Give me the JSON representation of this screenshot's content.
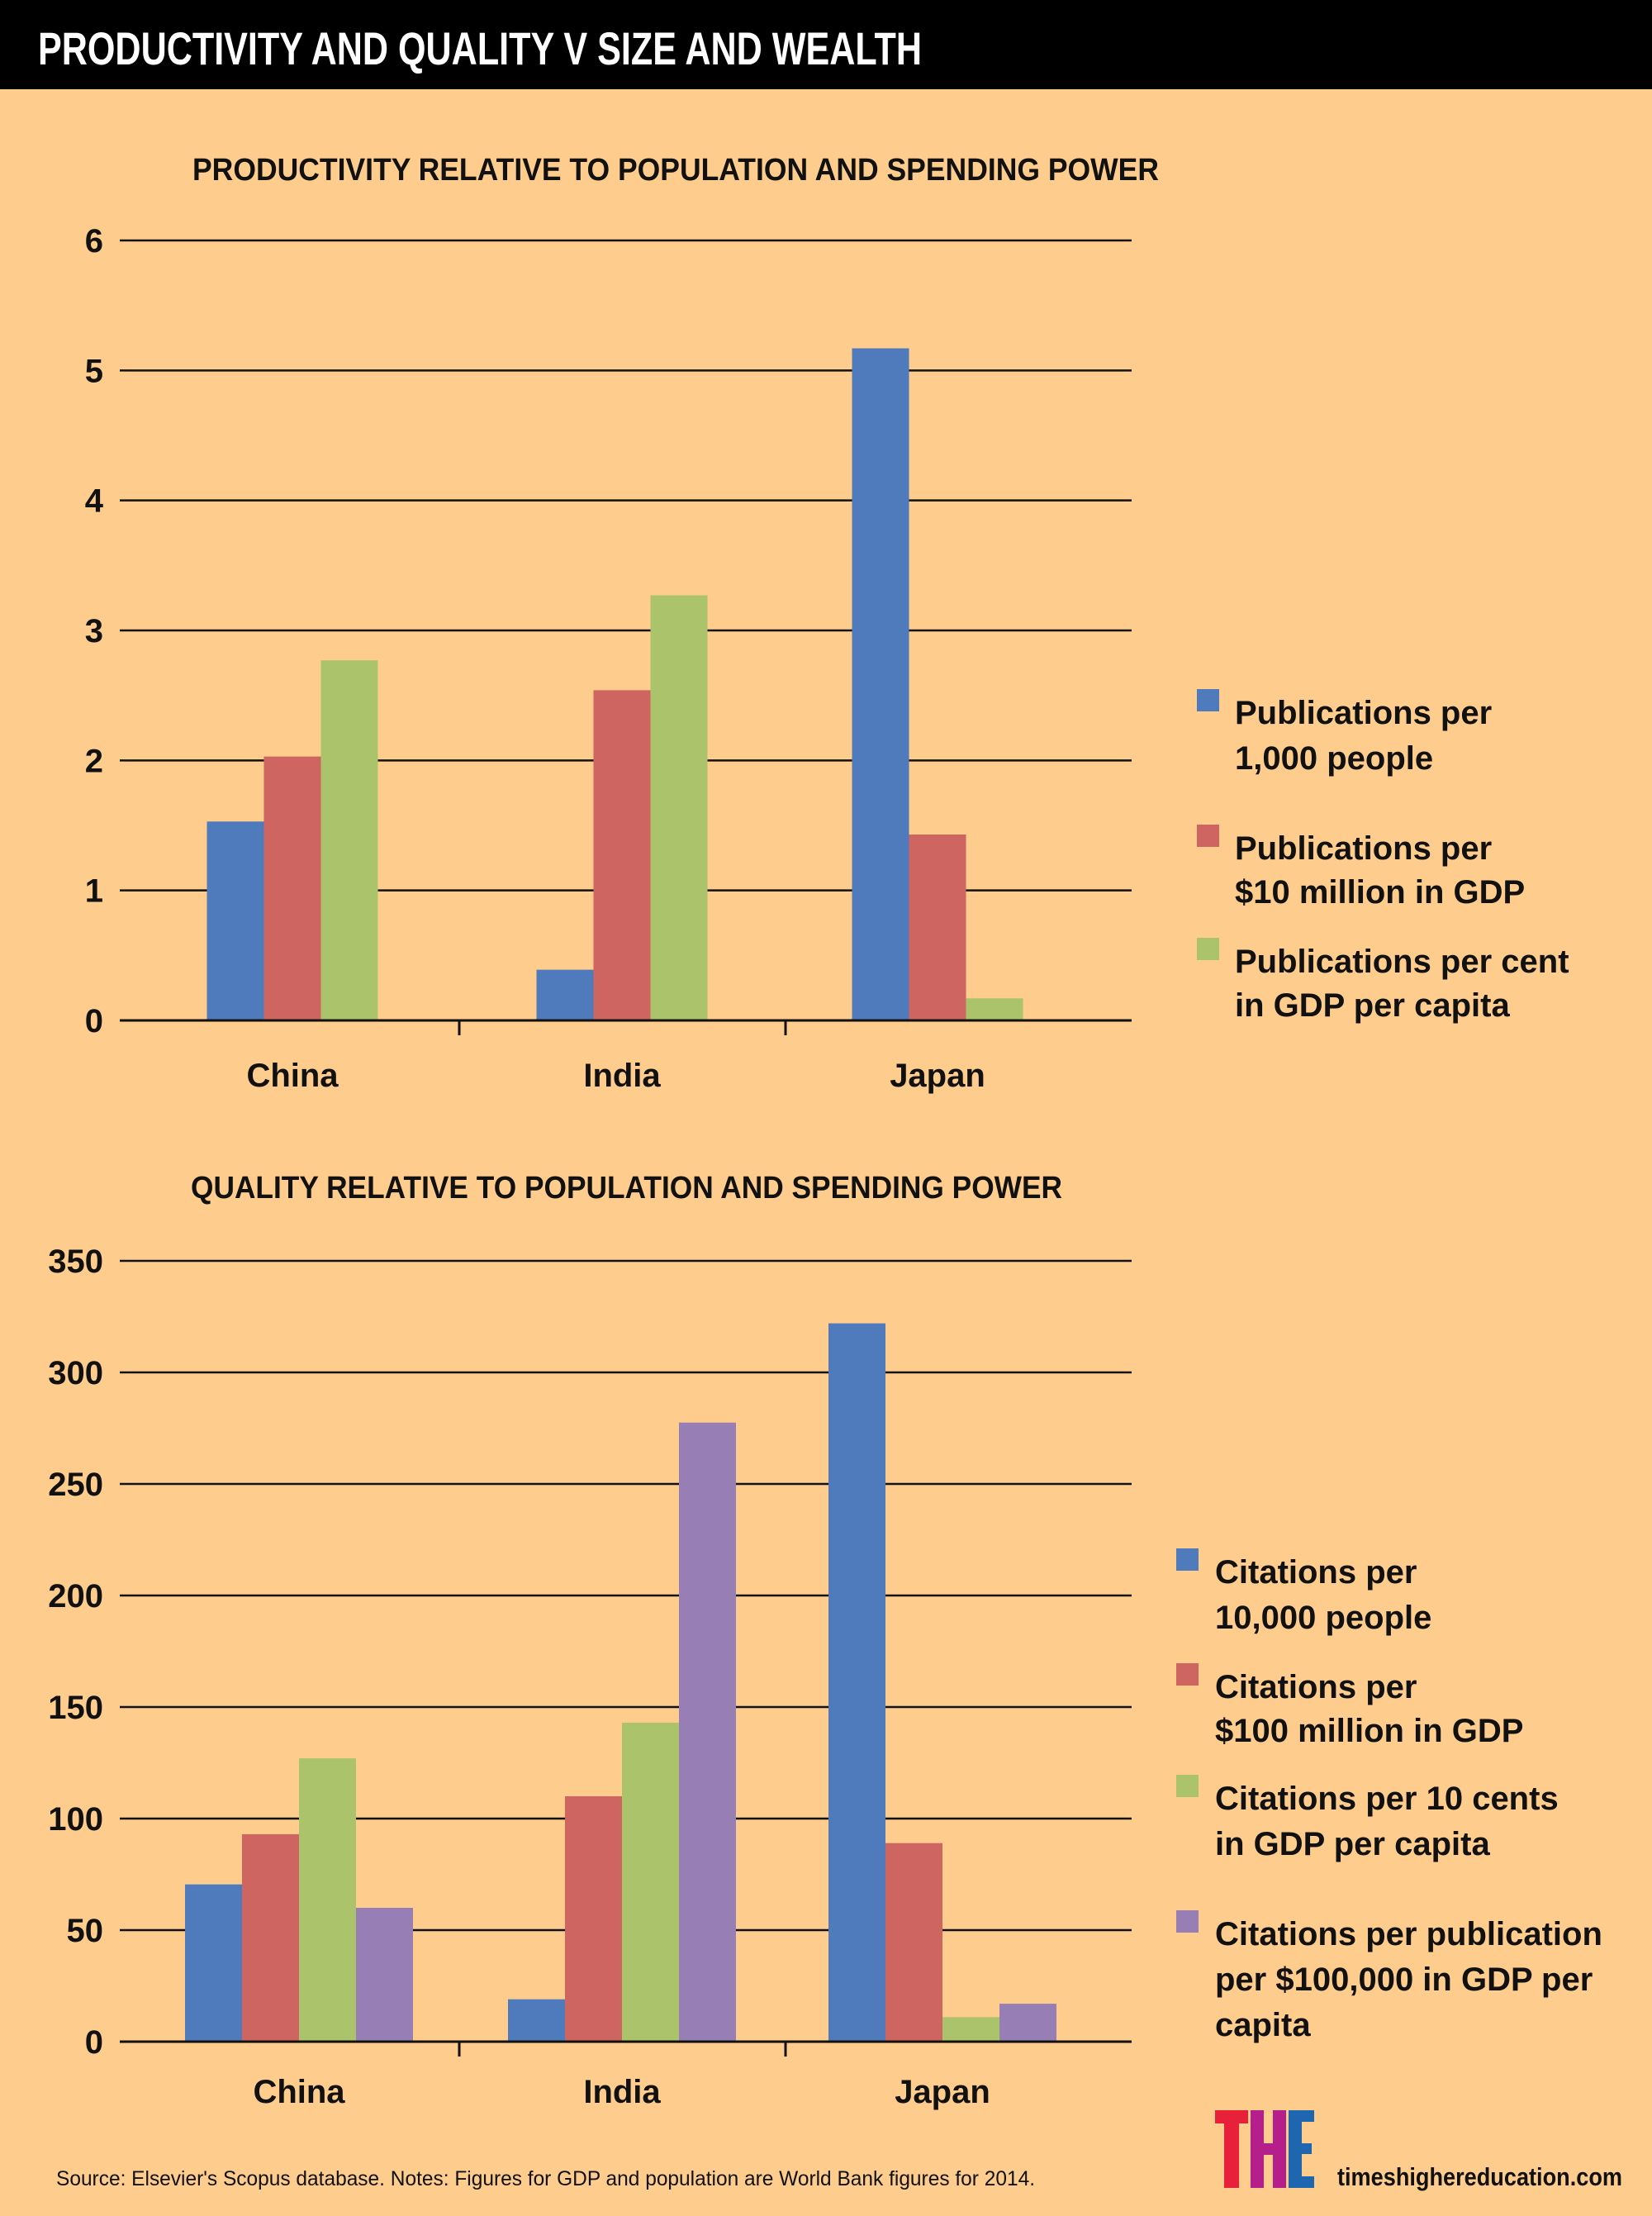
{
  "header": {
    "title": "PRODUCTIVITY AND QUALITY V SIZE AND WEALTH"
  },
  "colors": {
    "background": "#fecc8d",
    "header": "#000000",
    "blue": "#4f7bbd",
    "red": "#cf6560",
    "green": "#abc46b",
    "purple": "#977fb5"
  },
  "chart_data": [
    {
      "type": "bar",
      "title": "PRODUCTIVITY RELATIVE TO POPULATION AND SPENDING POWER",
      "categories": [
        "China",
        "India",
        "Japan"
      ],
      "ylim": [
        0,
        6
      ],
      "yticks": [
        "0",
        "1",
        "2",
        "3",
        "4",
        "5",
        "6"
      ],
      "grid": true,
      "legend_position": "right",
      "series": [
        {
          "name": "Publications per 1,000 people",
          "lines": [
            "Publications per",
            "1,000 people"
          ],
          "color": "#4f7bbd",
          "values": [
            1.53,
            0.39,
            5.17
          ]
        },
        {
          "name": "Publications per $10 million in GDP",
          "lines": [
            "Publications per",
            "$10 million in GDP"
          ],
          "color": "#cf6560",
          "values": [
            2.03,
            2.54,
            1.43
          ]
        },
        {
          "name": "Publications per cent in GDP per capita",
          "lines": [
            "Publications per cent",
            "in GDP per capita"
          ],
          "color": "#abc46b",
          "values": [
            2.77,
            3.27,
            0.17
          ]
        }
      ]
    },
    {
      "type": "bar",
      "title": "QUALITY RELATIVE TO POPULATION AND SPENDING POWER",
      "categories": [
        "China",
        "India",
        "Japan"
      ],
      "ylim": [
        0,
        350
      ],
      "yticks": [
        "0",
        "50",
        "100",
        "150",
        "200",
        "250",
        "300",
        "350"
      ],
      "grid": true,
      "legend_position": "right",
      "series": [
        {
          "name": "Citations per 10,000 people",
          "lines": [
            "Citations per",
            "10,000 people"
          ],
          "color": "#4f7bbd",
          "values": [
            70.5,
            19,
            322
          ]
        },
        {
          "name": "Citations per $100 million in GDP",
          "lines": [
            "Citations per",
            "$100 million in GDP"
          ],
          "color": "#cf6560",
          "values": [
            93,
            110,
            89
          ]
        },
        {
          "name": "Citations per 10 cents in GDP per capita",
          "lines": [
            "Citations per 10 cents",
            "in GDP per capita"
          ],
          "color": "#abc46b",
          "values": [
            127,
            143,
            11
          ]
        },
        {
          "name": "Citations per publication per $100,000 in GDP per capita",
          "lines": [
            "Citations per publication",
            "per $100,000 in GDP per",
            "capita"
          ],
          "color": "#977fb5",
          "values": [
            60,
            277.5,
            17
          ]
        }
      ]
    }
  ],
  "footer": {
    "source": "Source: Elsevier's Scopus database. Notes: Figures for GDP and population are World Bank figures for 2014.",
    "logo": "THE",
    "website": "timeshighereducation.com"
  }
}
